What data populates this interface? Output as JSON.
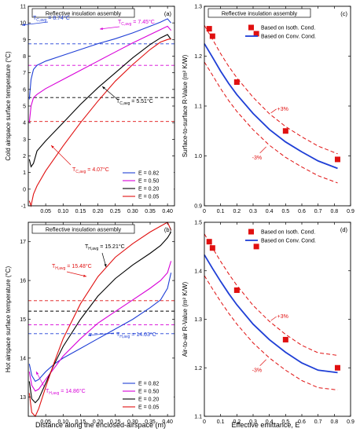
{
  "figure": {
    "xlabel_left": "Distance along the enclosed-airspace (m)",
    "xlabel_right": "Effective emittance, E"
  },
  "chart_data": [
    {
      "id": "a",
      "panel_label": "(a)",
      "type": "line",
      "title": "Reflective insulation assembly",
      "ylabel": "Cold airspace surface temperature (°C)",
      "xlim": [
        0,
        0.42
      ],
      "ylim": [
        -1,
        11
      ],
      "xticks": [
        "0.05",
        "0.10",
        "0.15",
        "0.20",
        "0.25",
        "0.30",
        "0.35",
        "0.40"
      ],
      "yticks": [
        "-1",
        "0",
        "1",
        "2",
        "3",
        "4",
        "5",
        "6",
        "7",
        "8",
        "9",
        "10",
        "11"
      ],
      "legend": {
        "position": "bottom-right",
        "entries": [
          "E = 0.82",
          "E = 0.50",
          "E = 0.20",
          "E = 0.05"
        ]
      },
      "series": [
        {
          "name": "E = 0.82",
          "color": "#1f3fd6",
          "avg": 8.74,
          "x": [
            0.003,
            0.008,
            0.015,
            0.025,
            0.05,
            0.1,
            0.15,
            0.2,
            0.25,
            0.3,
            0.35,
            0.38,
            0.4,
            0.41
          ],
          "y": [
            5.4,
            6.6,
            7.2,
            7.45,
            7.7,
            8.05,
            8.4,
            8.75,
            9.05,
            9.4,
            9.8,
            10.05,
            10.25,
            10.0
          ]
        },
        {
          "name": "E = 0.50",
          "color": "#d800d8",
          "avg": 7.45,
          "x": [
            0.003,
            0.008,
            0.015,
            0.025,
            0.05,
            0.1,
            0.15,
            0.2,
            0.25,
            0.3,
            0.35,
            0.38,
            0.4,
            0.41
          ],
          "y": [
            4.0,
            5.0,
            5.5,
            5.7,
            6.05,
            6.6,
            7.15,
            7.7,
            8.25,
            8.8,
            9.3,
            9.6,
            9.8,
            9.55
          ]
        },
        {
          "name": "E = 0.20",
          "color": "#000000",
          "avg": 5.51,
          "x": [
            0.003,
            0.008,
            0.015,
            0.025,
            0.05,
            0.1,
            0.15,
            0.2,
            0.25,
            0.3,
            0.35,
            0.38,
            0.4,
            0.41
          ],
          "y": [
            1.8,
            1.35,
            1.55,
            2.3,
            2.9,
            4.0,
            5.1,
            6.1,
            7.0,
            7.9,
            8.7,
            9.1,
            9.3,
            9.0
          ]
        },
        {
          "name": "E = 0.05",
          "color": "#e01010",
          "avg": 4.07,
          "x": [
            0.003,
            0.008,
            0.015,
            0.025,
            0.05,
            0.1,
            0.15,
            0.2,
            0.25,
            0.3,
            0.35,
            0.38,
            0.4,
            0.41
          ],
          "y": [
            -0.7,
            -1.0,
            -0.3,
            0.2,
            1.1,
            2.6,
            4.0,
            5.3,
            6.5,
            7.5,
            8.4,
            8.85,
            9.0,
            9.05
          ]
        }
      ],
      "annotations": [
        {
          "text": "T",
          "sub": "C,avg",
          "value": " = 8.74°C",
          "color": "#1f3fd6"
        },
        {
          "text": "T",
          "sub": "C,avg",
          "value": " = 7.45°C",
          "color": "#d800d8"
        },
        {
          "text": "T",
          "sub": "C,avg",
          "value": " = 5.51°C",
          "color": "#000000"
        },
        {
          "text": "T",
          "sub": "C,avg",
          "value": " = 4.07°C",
          "color": "#e01010"
        }
      ]
    },
    {
      "id": "b",
      "panel_label": "(b)",
      "type": "line",
      "title": "Reflective insulation assembly",
      "ylabel": "Hot airspace surface temperature (°C)",
      "xlim": [
        0,
        0.42
      ],
      "ylim": [
        12.5,
        17.5
      ],
      "xticks": [
        "0.05",
        "0.10",
        "0.15",
        "0.20",
        "0.25",
        "0.30",
        "0.35",
        "0.40"
      ],
      "yticks": [
        "13",
        "14",
        "15",
        "16",
        "17"
      ],
      "legend": {
        "position": "bottom-right",
        "entries": [
          "E = 0.82",
          "E = 0.50",
          "E = 0.20",
          "E = 0.05"
        ]
      },
      "series": [
        {
          "name": "E = 0.82",
          "color": "#1f3fd6",
          "avg": 14.63,
          "x": [
            0.003,
            0.01,
            0.02,
            0.03,
            0.05,
            0.075,
            0.1,
            0.15,
            0.2,
            0.25,
            0.3,
            0.35,
            0.38,
            0.4,
            0.41
          ],
          "y": [
            13.85,
            13.55,
            13.4,
            13.45,
            13.65,
            13.85,
            14.0,
            14.25,
            14.5,
            14.75,
            15.0,
            15.3,
            15.5,
            15.8,
            16.2
          ]
        },
        {
          "name": "E = 0.50",
          "color": "#d800d8",
          "avg": 14.86,
          "x": [
            0.003,
            0.01,
            0.02,
            0.03,
            0.05,
            0.075,
            0.1,
            0.15,
            0.2,
            0.25,
            0.3,
            0.35,
            0.38,
            0.4,
            0.41
          ],
          "y": [
            13.65,
            13.3,
            13.15,
            13.2,
            13.45,
            13.75,
            14.05,
            14.5,
            14.9,
            15.2,
            15.5,
            15.8,
            16.0,
            16.2,
            16.5
          ]
        },
        {
          "name": "E = 0.20",
          "color": "#000000",
          "avg": 15.21,
          "x": [
            0.003,
            0.01,
            0.02,
            0.03,
            0.05,
            0.075,
            0.1,
            0.15,
            0.2,
            0.25,
            0.3,
            0.35,
            0.38,
            0.4,
            0.41
          ],
          "y": [
            13.4,
            12.95,
            12.85,
            12.95,
            13.35,
            13.85,
            14.3,
            15.0,
            15.6,
            16.05,
            16.4,
            16.7,
            16.9,
            17.1,
            17.25
          ]
        },
        {
          "name": "E = 0.05",
          "color": "#e01010",
          "avg": 15.48,
          "x": [
            0.003,
            0.01,
            0.02,
            0.03,
            0.05,
            0.075,
            0.1,
            0.15,
            0.2,
            0.25,
            0.3,
            0.35,
            0.38,
            0.4,
            0.41
          ],
          "y": [
            13.1,
            12.6,
            12.5,
            12.7,
            13.25,
            13.9,
            14.5,
            15.4,
            16.1,
            16.6,
            16.95,
            17.25,
            17.4,
            17.5,
            17.3
          ]
        }
      ],
      "annotations": [
        {
          "text": "T",
          "sub": "H,avg",
          "value": " = 15.21°C",
          "color": "#000000"
        },
        {
          "text": "T",
          "sub": "H,avg",
          "value": " = 15.48°C",
          "color": "#e01010"
        },
        {
          "text": "T",
          "sub": "H,avg",
          "value": " = 14.63°C",
          "color": "#1f3fd6"
        },
        {
          "text": "T",
          "sub": "H,avg",
          "value": " = 14.86°C",
          "color": "#d800d8"
        }
      ]
    },
    {
      "id": "c",
      "panel_label": "(c)",
      "type": "scatter",
      "title": "Reflective insulation assembly",
      "ylabel": "Surface-to-surface R-Value (m² K/W)",
      "xlim": [
        0,
        0.9
      ],
      "ylim": [
        0.9,
        1.3
      ],
      "xticks": [
        "0",
        "0.1",
        "0.2",
        "0.3",
        "0.4",
        "0.5",
        "0.6",
        "0.7",
        "0.8",
        "0.9"
      ],
      "yticks": [
        "0.9",
        "1.0",
        "1.1",
        "1.2",
        "1.3"
      ],
      "legend": {
        "position": "top-right",
        "entries": [
          "Based on Isoth. Cond.",
          "Based on Conv. Cond."
        ]
      },
      "points": {
        "name": "Based on Isoth. Cond.",
        "color": "#e01010",
        "x": [
          0.03,
          0.05,
          0.2,
          0.32,
          0.5,
          0.82
        ],
        "y": [
          1.255,
          1.24,
          1.148,
          1.245,
          1.05,
          0.993
        ]
      },
      "curve": {
        "name": "Based on Conv. Cond.",
        "color": "#1f3fd6",
        "x": [
          0.0,
          0.05,
          0.1,
          0.15,
          0.2,
          0.3,
          0.4,
          0.5,
          0.6,
          0.7,
          0.82
        ],
        "y": [
          1.225,
          1.198,
          1.17,
          1.145,
          1.123,
          1.085,
          1.053,
          1.028,
          1.008,
          0.99,
          0.975
        ]
      },
      "band": {
        "color": "#e01010",
        "plus": "+3%",
        "minus": "-3%",
        "fraction": 0.03
      }
    },
    {
      "id": "d",
      "panel_label": "(d)",
      "type": "scatter",
      "title": "",
      "ylabel": "Air-to-air R-Value (m² K/W)",
      "xlim": [
        0,
        0.9
      ],
      "ylim": [
        1.1,
        1.5
      ],
      "xticks": [
        "0",
        "0.1",
        "0.2",
        "0.3",
        "0.4",
        "0.5",
        "0.6",
        "0.7",
        "0.8",
        "0.9"
      ],
      "yticks": [
        "1.1",
        "1.2",
        "1.3",
        "1.4",
        "1.5"
      ],
      "legend": {
        "position": "top-right",
        "entries": [
          "Based on Isoth. Cond.",
          "Based on Conv. Cond."
        ]
      },
      "points": {
        "name": "Based on Isoth. Cond.",
        "color": "#e01010",
        "x": [
          0.03,
          0.05,
          0.2,
          0.32,
          0.5,
          0.82
        ],
        "y": [
          1.46,
          1.447,
          1.36,
          1.45,
          1.258,
          1.2
        ]
      },
      "curve": {
        "name": "Based on Conv. Cond.",
        "color": "#1f3fd6",
        "x": [
          0.0,
          0.05,
          0.1,
          0.15,
          0.2,
          0.3,
          0.4,
          0.5,
          0.6,
          0.7,
          0.82
        ],
        "y": [
          1.433,
          1.405,
          1.378,
          1.353,
          1.33,
          1.29,
          1.258,
          1.232,
          1.21,
          1.195,
          1.19
        ]
      },
      "band": {
        "color": "#e01010",
        "plus": "+3%",
        "minus": "-3%",
        "fraction": 0.03
      }
    }
  ]
}
